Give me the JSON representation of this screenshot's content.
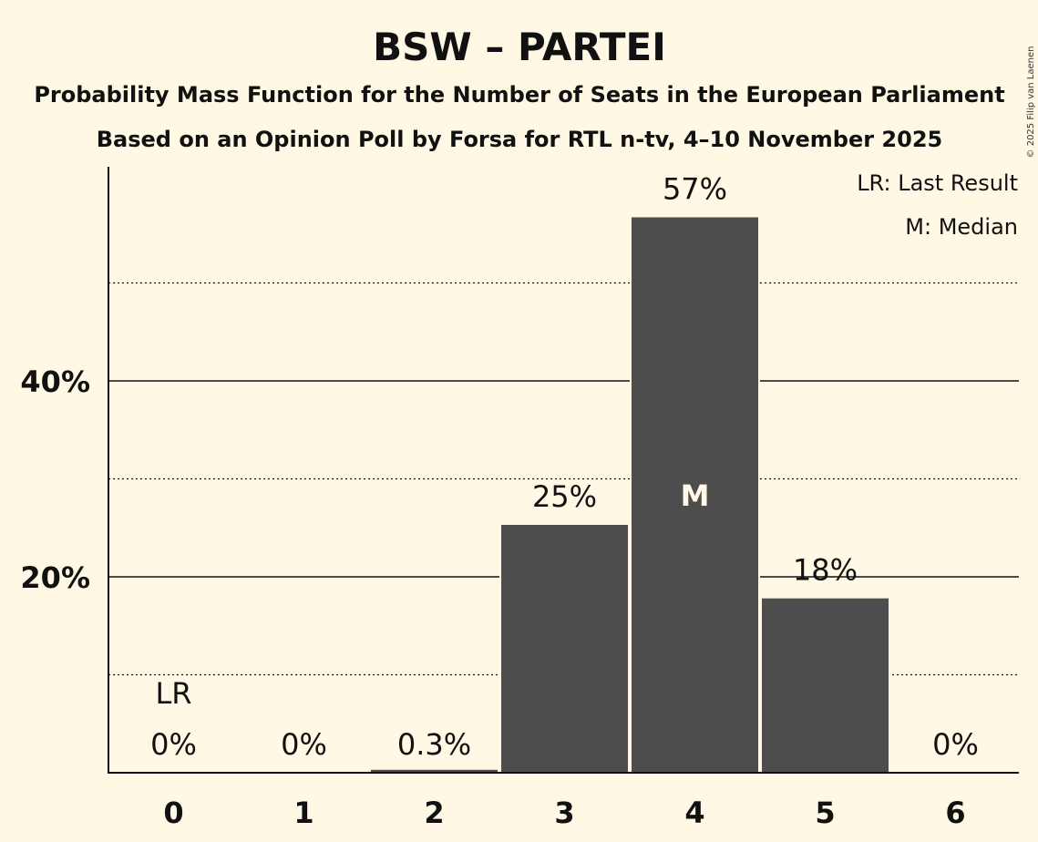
{
  "chart_data": {
    "type": "bar",
    "title": "BSW – PARTEI",
    "subtitle1": "Probability Mass Function for the Number of Seats in the European Parliament",
    "subtitle2": "Based on an Opinion Poll by Forsa for RTL n-tv, 4–10 November 2025",
    "categories": [
      "0",
      "1",
      "2",
      "3",
      "4",
      "5",
      "6"
    ],
    "values": [
      0,
      0,
      0.3,
      25.3,
      56.7,
      17.8,
      0
    ],
    "value_labels": [
      "0%",
      "0%",
      "0.3%",
      "25%",
      "57%",
      "18%",
      "0%"
    ],
    "ylim": [
      0,
      62
    ],
    "yticks": [
      20,
      40
    ],
    "ytick_labels": [
      "20%",
      "40%"
    ],
    "minor_grid": [
      10,
      30,
      50
    ],
    "last_result_index": 0,
    "last_result_label": "LR",
    "median_index": 4,
    "median_label": "M",
    "legend": [
      "LR: Last Result",
      "M: Median"
    ],
    "legend_position": "top-right",
    "copyright": "© 2025 Filip van Laenen",
    "colors": {
      "bar": "#4D4D4D",
      "background": "#FFF8E4",
      "text": "#111111"
    }
  }
}
